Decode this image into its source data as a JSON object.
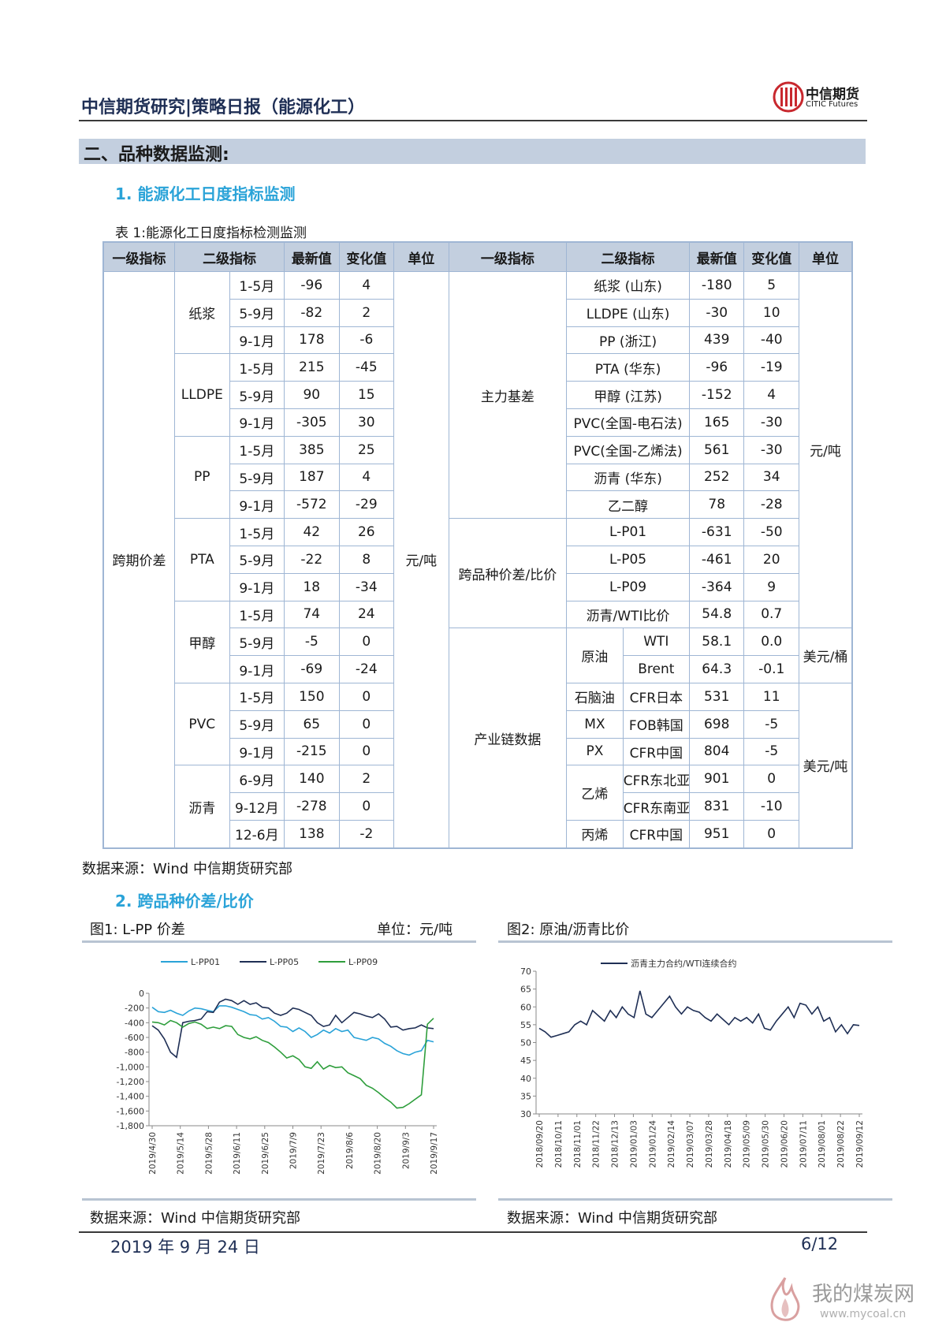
{
  "header": {
    "title": "中信期货研究|策略日报（能源化工）",
    "logo_cn": "中信期货",
    "logo_en": "CITIC Futures"
  },
  "section": {
    "title": "二、品种数据监测:"
  },
  "subsection1": {
    "title": "1.  能源化工日度指标监测"
  },
  "table": {
    "caption": "表 1:能源化工日度指标检测监测",
    "headers": [
      "一级指标",
      "二级指标",
      "最新值",
      "变化值",
      "单位",
      "一级指标",
      "二级指标",
      "最新值",
      "变化值",
      "单位"
    ],
    "left_group": "跨期价差",
    "left_unit": "元/吨",
    "left_rows": [
      {
        "item": "纸浆",
        "spreads": [
          [
            "1-5月",
            "-96",
            "4"
          ],
          [
            "5-9月",
            "-82",
            "2"
          ],
          [
            "9-1月",
            "178",
            "-6"
          ]
        ]
      },
      {
        "item": "LLDPE",
        "spreads": [
          [
            "1-5月",
            "215",
            "-45"
          ],
          [
            "5-9月",
            "90",
            "15"
          ],
          [
            "9-1月",
            "-305",
            "30"
          ]
        ]
      },
      {
        "item": "PP",
        "spreads": [
          [
            "1-5月",
            "385",
            "25"
          ],
          [
            "5-9月",
            "187",
            "4"
          ],
          [
            "9-1月",
            "-572",
            "-29"
          ]
        ]
      },
      {
        "item": "PTA",
        "spreads": [
          [
            "1-5月",
            "42",
            "26"
          ],
          [
            "5-9月",
            "-22",
            "8"
          ],
          [
            "9-1月",
            "18",
            "-34"
          ]
        ]
      },
      {
        "item": "甲醇",
        "spreads": [
          [
            "1-5月",
            "74",
            "24"
          ],
          [
            "5-9月",
            "-5",
            "0"
          ],
          [
            "9-1月",
            "-69",
            "-24"
          ]
        ]
      },
      {
        "item": "PVC",
        "spreads": [
          [
            "1-5月",
            "150",
            "0"
          ],
          [
            "5-9月",
            "65",
            "0"
          ],
          [
            "9-1月",
            "-215",
            "0"
          ]
        ]
      },
      {
        "item": "沥青",
        "spreads": [
          [
            "6-9月",
            "140",
            "2"
          ],
          [
            "9-12月",
            "-278",
            "0"
          ],
          [
            "12-6月",
            "138",
            "-2"
          ]
        ]
      }
    ],
    "basis_group": "主力基差",
    "basis_rows": [
      [
        "纸浆 (山东)",
        "-180",
        "5"
      ],
      [
        "LLDPE (山东)",
        "-30",
        "10"
      ],
      [
        "PP (浙江)",
        "439",
        "-40"
      ],
      [
        "PTA (华东)",
        "-96",
        "-19"
      ],
      [
        "甲醇 (江苏)",
        "-152",
        "4"
      ],
      [
        "PVC(全国-电石法)",
        "165",
        "-30"
      ],
      [
        "PVC(全国-乙烯法)",
        "561",
        "-30"
      ],
      [
        "沥青 (华东)",
        "252",
        "34"
      ],
      [
        "乙二醇",
        "78",
        "-28"
      ]
    ],
    "cross_group": "跨品种价差/比价",
    "cross_rows": [
      [
        "L-P01",
        "-631",
        "-50"
      ],
      [
        "L-P05",
        "-461",
        "20"
      ],
      [
        "L-P09",
        "-364",
        "9"
      ],
      [
        "沥青/WTI比价",
        "54.8",
        "0.7"
      ]
    ],
    "right_unit_yuan": "元/吨",
    "chain_group": "产业链数据",
    "crude_label": "原油",
    "crude_rows": [
      [
        "WTI",
        "58.1",
        "0.0"
      ],
      [
        "Brent",
        "64.3",
        "-0.1"
      ]
    ],
    "crude_unit": "美元/桶",
    "chain_rows": [
      {
        "name": "石脑油",
        "sub": "CFR日本",
        "v": "531",
        "c": "11"
      },
      {
        "name": "MX",
        "sub": "FOB韩国",
        "v": "698",
        "c": "-5"
      },
      {
        "name": "PX",
        "sub": "CFR中国",
        "v": "804",
        "c": "-5"
      }
    ],
    "ethylene_label": "乙烯",
    "ethylene_rows": [
      [
        "CFR东北亚",
        "901",
        "0"
      ],
      [
        "CFR东南亚",
        "831",
        "-10"
      ]
    ],
    "propylene": {
      "name": "丙烯",
      "sub": "CFR中国",
      "v": "951",
      "c": "0"
    },
    "chain_unit": "美元/吨"
  },
  "source1": "数据来源：Wind  中信期货研究部",
  "subsection2": {
    "title": "2.  跨品种价差/比价"
  },
  "chart1": {
    "caption": "图1: L-PP 价差",
    "unit": "单位：元/吨",
    "source": "数据来源：Wind  中信期货研究部"
  },
  "chart2": {
    "caption": "图2: 原油/沥青比价",
    "source": "数据来源：Wind  中信期货研究部"
  },
  "chart_data": [
    {
      "type": "line",
      "title": "图1: L-PP 价差",
      "ylabel": "单位：元/吨",
      "ylim": [
        -1800,
        0
      ],
      "yticks": [
        "0",
        "-200",
        "-400",
        "-600",
        "-800",
        "-1,000",
        "-1,200",
        "-1,400",
        "-1,600",
        "-1,800"
      ],
      "x_ticks": [
        "2019/4/30",
        "2019/5/14",
        "2019/5/28",
        "2019/6/11",
        "2019/6/25",
        "2019/7/9",
        "2019/7/23",
        "2019/8/6",
        "2019/8/20",
        "2019/9/3",
        "2019/9/17"
      ],
      "colors": {
        "L-PP01": "#2aa3d8",
        "L-PP05": "#1f2f55",
        "L-PP09": "#2e9e3c"
      },
      "series": [
        {
          "name": "L-PP01",
          "values": [
            -190,
            -250,
            -260,
            -230,
            -270,
            -300,
            -240,
            -200,
            -210,
            -230,
            -250,
            -170,
            -170,
            -190,
            -220,
            -250,
            -290,
            -300,
            -350,
            -330,
            -380,
            -450,
            -460,
            -520,
            -470,
            -520,
            -600,
            -560,
            -500,
            -540,
            -480,
            -520,
            -500,
            -600,
            -620,
            -640,
            -600,
            -620,
            -680,
            -720,
            -780,
            -820,
            -840,
            -800,
            -780,
            -640,
            -660
          ]
        },
        {
          "name": "L-PP05",
          "values": [
            -440,
            -500,
            -620,
            -800,
            -870,
            -400,
            -380,
            -370,
            -350,
            -250,
            -260,
            -120,
            -80,
            -100,
            -150,
            -100,
            -150,
            -130,
            -190,
            -200,
            -270,
            -300,
            -270,
            -200,
            -220,
            -260,
            -300,
            -400,
            -450,
            -430,
            -300,
            -400,
            -330,
            -260,
            -280,
            -310,
            -330,
            -280,
            -350,
            -460,
            -450,
            -500,
            -480,
            -470,
            -430,
            -470,
            -480
          ]
        },
        {
          "name": "L-PP09",
          "values": [
            -390,
            -400,
            -430,
            -370,
            -400,
            -460,
            -410,
            -390,
            -420,
            -480,
            -460,
            -480,
            -440,
            -450,
            -560,
            -600,
            -620,
            -590,
            -640,
            -670,
            -730,
            -800,
            -880,
            -850,
            -900,
            -1000,
            -1020,
            -930,
            -1030,
            -980,
            -1010,
            -1000,
            -1080,
            -1120,
            -1160,
            -1250,
            -1290,
            -1350,
            -1420,
            -1480,
            -1560,
            -1550,
            -1500,
            -1440,
            -1380,
            -420,
            -340
          ]
        }
      ]
    },
    {
      "type": "line",
      "title": "图2: 原油/沥青比价",
      "ylim": [
        30,
        70
      ],
      "yticks": [
        "70",
        "65",
        "60",
        "55",
        "50",
        "45",
        "40",
        "35",
        "30"
      ],
      "x_ticks": [
        "2018/09/20",
        "2018/10/11",
        "2018/11/01",
        "2018/11/22",
        "2018/12/13",
        "2019/01/03",
        "2019/01/24",
        "2019/02/14",
        "2019/03/07",
        "2019/03/28",
        "2019/04/18",
        "2019/05/09",
        "2019/05/30",
        "2019/06/20",
        "2019/07/11",
        "2019/08/01",
        "2019/08/22",
        "2019/09/12"
      ],
      "series": [
        {
          "name": "沥青主力合约/WTI连续合约",
          "color": "#1f2f55",
          "values": [
            54,
            53,
            51.5,
            52,
            52.5,
            53,
            55,
            56,
            55,
            59,
            57.5,
            56,
            59,
            57,
            60,
            58,
            57,
            64.5,
            58,
            57,
            59,
            61,
            63,
            60,
            58,
            60,
            59,
            58.5,
            57,
            56,
            58,
            56.5,
            55,
            57,
            56,
            57,
            55.5,
            58,
            54,
            53.5,
            56,
            58,
            60,
            57,
            61,
            60.5,
            58,
            60,
            56,
            57,
            53,
            55,
            52.5,
            55,
            54.8
          ]
        }
      ]
    }
  ],
  "footer": {
    "date": "2019 年 9 月 24 日",
    "page": "6/12"
  },
  "watermark": {
    "cn": "我的煤炭网",
    "url": "www.mycoal.cn"
  }
}
